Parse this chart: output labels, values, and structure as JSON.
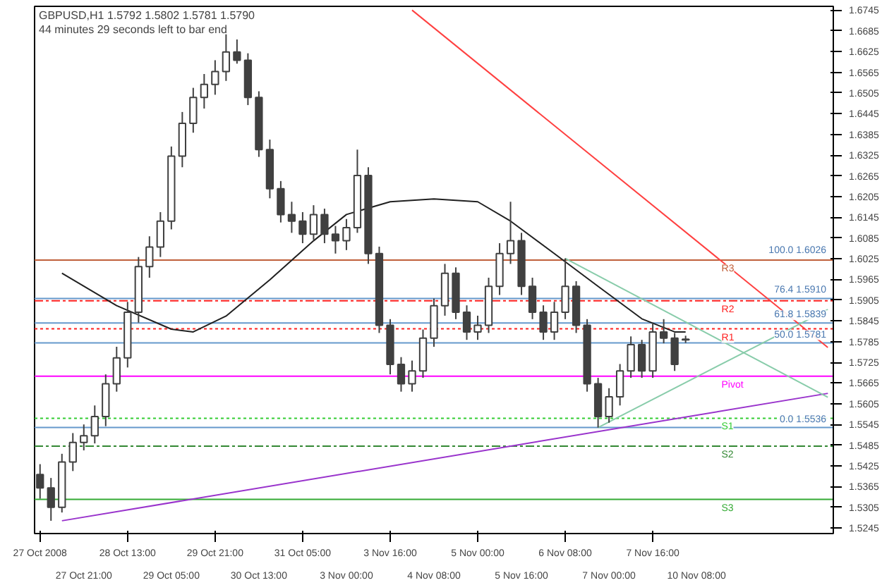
{
  "chart_data": {
    "type": "candlestick",
    "title": "GBPUSD,H1  1.5792 1.5802 1.5781 1.5790",
    "subtitle": "44 minutes 29 seconds left to bar end",
    "color": "#404040",
    "categories": [
      "27 Oct 2008",
      null,
      null,
      null,
      "27 Oct 21:00",
      null,
      null,
      null,
      "28 Oct 13:00",
      null,
      null,
      null,
      "29 Oct 05:00",
      null,
      null,
      null,
      "29 Oct 21:00",
      null,
      null,
      null,
      "30 Oct 13:00",
      null,
      null,
      null,
      "31 Oct 05:00",
      null,
      null,
      null,
      "3 Nov 00:00",
      null,
      null,
      null,
      "3 Nov 16:00",
      null,
      null,
      null,
      "4 Nov 08:00",
      null,
      null,
      null,
      "5 Nov 00:00",
      null,
      null,
      null,
      "5 Nov 16:00",
      null,
      null,
      null,
      "6 Nov 08:00",
      null,
      null,
      null,
      "7 Nov 00:00",
      null,
      null,
      null,
      "7 Nov 16:00",
      null,
      null,
      null,
      "10 Nov 08:00",
      null,
      null,
      null,
      null,
      null,
      null,
      null,
      null,
      null,
      null,
      null,
      null
    ],
    "ohlc": [
      [
        1.54,
        1.543,
        1.533,
        1.5361
      ],
      [
        1.5361,
        1.539,
        1.5266,
        1.5305
      ],
      [
        1.5305,
        1.546,
        1.529,
        1.5436
      ],
      [
        1.5436,
        1.552,
        1.541,
        1.5493
      ],
      [
        1.5493,
        1.5545,
        1.547,
        1.5512
      ],
      [
        1.5512,
        1.56,
        1.549,
        1.5568
      ],
      [
        1.5568,
        1.569,
        1.554,
        1.5663
      ],
      [
        1.5663,
        1.577,
        1.564,
        1.5738
      ],
      [
        1.5738,
        1.59,
        1.571,
        1.587
      ],
      [
        1.587,
        1.603,
        1.584,
        1.6002
      ],
      [
        1.6002,
        1.609,
        1.597,
        1.6059
      ],
      [
        1.6059,
        1.616,
        1.603,
        1.6134
      ],
      [
        1.6134,
        1.635,
        1.611,
        1.6322
      ],
      [
        1.6322,
        1.645,
        1.629,
        1.6417
      ],
      [
        1.6417,
        1.652,
        1.639,
        1.6492
      ],
      [
        1.6492,
        1.656,
        1.646,
        1.653
      ],
      [
        1.653,
        1.66,
        1.65,
        1.6567
      ],
      [
        1.6567,
        1.6675,
        1.654,
        1.6624
      ],
      [
        1.6624,
        1.666,
        1.659,
        1.66
      ],
      [
        1.66,
        1.662,
        1.647,
        1.6492
      ],
      [
        1.6492,
        1.651,
        1.632,
        1.6341
      ],
      [
        1.6341,
        1.637,
        1.62,
        1.6228
      ],
      [
        1.6228,
        1.625,
        1.613,
        1.6153
      ],
      [
        1.6153,
        1.619,
        1.61,
        1.6134
      ],
      [
        1.6134,
        1.616,
        1.607,
        1.6096
      ],
      [
        1.6096,
        1.618,
        1.608,
        1.6153
      ],
      [
        1.6153,
        1.617,
        1.607,
        1.6096
      ],
      [
        1.6096,
        1.612,
        1.604,
        1.6077
      ],
      [
        1.6077,
        1.614,
        1.605,
        1.6115
      ],
      [
        1.6115,
        1.6341,
        1.61,
        1.6266
      ],
      [
        1.6266,
        1.629,
        1.601,
        1.604
      ],
      [
        1.604,
        1.606,
        1.581,
        1.5832
      ],
      [
        1.5832,
        1.585,
        1.569,
        1.5719
      ],
      [
        1.5719,
        1.574,
        1.564,
        1.5663
      ],
      [
        1.5663,
        1.573,
        1.564,
        1.57
      ],
      [
        1.57,
        1.582,
        1.568,
        1.5795
      ],
      [
        1.5795,
        1.591,
        1.577,
        1.5889
      ],
      [
        1.5889,
        1.601,
        1.586,
        1.5983
      ],
      [
        1.5983,
        1.6,
        1.585,
        1.587
      ],
      [
        1.587,
        1.589,
        1.579,
        1.5813
      ],
      [
        1.5813,
        1.586,
        1.579,
        1.5832
      ],
      [
        1.5832,
        1.597,
        1.581,
        1.5945
      ],
      [
        1.5945,
        1.607,
        1.592,
        1.604
      ],
      [
        1.604,
        1.619,
        1.601,
        1.6077
      ],
      [
        1.6077,
        1.61,
        1.592,
        1.5945
      ],
      [
        1.5945,
        1.597,
        1.585,
        1.587
      ],
      [
        1.587,
        1.589,
        1.579,
        1.5813
      ],
      [
        1.5813,
        1.59,
        1.579,
        1.587
      ],
      [
        1.587,
        1.6026,
        1.585,
        1.5945
      ],
      [
        1.5945,
        1.596,
        1.581,
        1.5832
      ],
      [
        1.5832,
        1.585,
        1.564,
        1.5663
      ],
      [
        1.5663,
        1.568,
        1.5536,
        1.5568
      ],
      [
        1.5568,
        1.565,
        1.555,
        1.5625
      ],
      [
        1.5625,
        1.572,
        1.56,
        1.57
      ],
      [
        1.57,
        1.58,
        1.568,
        1.5776
      ],
      [
        1.5776,
        1.579,
        1.568,
        1.57
      ],
      [
        1.57,
        1.584,
        1.568,
        1.5813
      ],
      [
        1.5813,
        1.585,
        1.578,
        1.5795
      ],
      [
        1.5795,
        1.581,
        1.57,
        1.5719
      ],
      [
        1.5792,
        1.5802,
        1.5781,
        1.579
      ],
      null,
      null,
      null,
      null,
      null,
      null,
      null,
      null,
      null,
      null,
      null,
      null,
      null
    ],
    "series": [
      {
        "type": "line",
        "color": "#202020",
        "values": [
          null,
          null,
          1.5983,
          null,
          null,
          null,
          null,
          1.5889,
          null,
          null,
          null,
          null,
          1.5821,
          null,
          1.5813,
          null,
          null,
          1.5859,
          null,
          null,
          null,
          1.5964,
          null,
          null,
          null,
          1.6077,
          null,
          null,
          1.6153,
          null,
          null,
          null,
          1.619,
          null,
          null,
          null,
          1.6198,
          null,
          null,
          null,
          1.619,
          null,
          null,
          1.6134,
          null,
          null,
          null,
          1.604,
          null,
          null,
          null,
          1.5945,
          null,
          null,
          null,
          1.5851,
          null,
          null,
          1.5813,
          1.5813,
          null,
          null,
          null,
          null,
          null,
          null,
          null,
          null,
          null,
          null,
          null,
          null,
          null
        ]
      },
      {
        "type": "line",
        "color": "#ff4040",
        "values": [
          null,
          null,
          null,
          null,
          null,
          null,
          null,
          null,
          null,
          null,
          null,
          null,
          null,
          null,
          null,
          null,
          null,
          null,
          null,
          null,
          null,
          null,
          null,
          null,
          null,
          null,
          null,
          null,
          null,
          null,
          null,
          null,
          null,
          null,
          1.6745,
          null,
          null,
          null,
          null,
          null,
          null,
          null,
          null,
          null,
          null,
          null,
          null,
          null,
          null,
          null,
          null,
          null,
          null,
          null,
          null,
          null,
          null,
          null,
          null,
          null,
          null,
          null,
          null,
          null,
          null,
          null,
          null,
          null,
          null,
          null,
          null,
          null,
          1.5768
        ]
      },
      {
        "type": "line",
        "color": "#9933cc",
        "values": [
          null,
          null,
          1.5266,
          null,
          null,
          null,
          null,
          null,
          null,
          null,
          null,
          null,
          null,
          null,
          null,
          null,
          null,
          null,
          null,
          null,
          null,
          null,
          null,
          null,
          null,
          null,
          null,
          null,
          null,
          null,
          null,
          null,
          null,
          null,
          null,
          null,
          null,
          null,
          null,
          null,
          null,
          null,
          null,
          null,
          null,
          null,
          null,
          null,
          null,
          null,
          null,
          null,
          null,
          null,
          null,
          null,
          null,
          null,
          null,
          null,
          null,
          null,
          null,
          null,
          null,
          null,
          null,
          null,
          null,
          null,
          null,
          null,
          1.5635
        ]
      },
      {
        "type": "line",
        "color": "#88ccaa",
        "values": [
          null,
          null,
          null,
          null,
          null,
          null,
          null,
          null,
          null,
          null,
          null,
          null,
          null,
          null,
          null,
          null,
          null,
          null,
          null,
          null,
          null,
          null,
          null,
          null,
          null,
          null,
          null,
          null,
          null,
          null,
          null,
          null,
          null,
          null,
          null,
          null,
          null,
          null,
          null,
          null,
          null,
          null,
          null,
          null,
          null,
          null,
          null,
          null,
          1.6026,
          null,
          null,
          null,
          null,
          null,
          null,
          null,
          null,
          null,
          null,
          null,
          null,
          null,
          null,
          null,
          null,
          null,
          null,
          null,
          null,
          null,
          null,
          null,
          1.5624
        ]
      },
      {
        "type": "line",
        "color": "#88ccaa",
        "values": [
          null,
          null,
          null,
          null,
          null,
          null,
          null,
          null,
          null,
          null,
          null,
          null,
          null,
          null,
          null,
          null,
          null,
          null,
          null,
          null,
          null,
          null,
          null,
          null,
          null,
          null,
          null,
          null,
          null,
          null,
          null,
          null,
          null,
          null,
          null,
          null,
          null,
          null,
          null,
          null,
          null,
          null,
          null,
          null,
          null,
          null,
          null,
          null,
          null,
          null,
          null,
          1.5536,
          null,
          null,
          null,
          null,
          null,
          null,
          null,
          null,
          null,
          null,
          null,
          null,
          null,
          null,
          null,
          null,
          null,
          null,
          null,
          null,
          1.5878
        ]
      }
    ],
    "ylim": [
      1.5229,
      1.6756
    ],
    "yticks": [
      1.6745,
      1.6685,
      1.6625,
      1.6565,
      1.6505,
      1.6445,
      1.6385,
      1.6325,
      1.6265,
      1.6205,
      1.6145,
      1.6085,
      1.6025,
      1.5965,
      1.5905,
      1.5845,
      1.5785,
      1.5725,
      1.5665,
      1.5605,
      1.5545,
      1.5485,
      1.5425,
      1.5365,
      1.5305,
      1.5245
    ],
    "ref_lines": [
      {
        "axis": "y",
        "value": 1.6021,
        "label": "R3",
        "color": "#c0603a",
        "line_style": "solid"
      },
      {
        "axis": "y",
        "value": 1.5903,
        "label": "R2",
        "color": "#ff2020",
        "line_style": "dashed"
      },
      {
        "axis": "y",
        "value": 1.5822,
        "label": "R1",
        "color": "#ff2020",
        "line_style": "dotted"
      },
      {
        "axis": "y",
        "value": 1.5685,
        "label": "Pivot",
        "color": "#ff00ff",
        "line_style": "solid"
      },
      {
        "axis": "y",
        "value": 1.5563,
        "label": "S1",
        "color": "#33cc33",
        "line_style": "dotted"
      },
      {
        "axis": "y",
        "value": 1.5482,
        "label": "S2",
        "color": "#338833",
        "line_style": "dashed"
      },
      {
        "axis": "y",
        "value": 1.5328,
        "label": "S3",
        "color": "#33aa33",
        "line_style": "solid"
      },
      {
        "axis": "y",
        "value": 1.591,
        "color": "#6699cc",
        "line_style": "solid"
      },
      {
        "axis": "y",
        "value": 1.5839,
        "color": "#6699cc",
        "line_style": "solid"
      },
      {
        "axis": "y",
        "value": 1.5781,
        "color": "#6699cc",
        "line_style": "solid"
      },
      {
        "axis": "y",
        "value": 1.5536,
        "color": "#6699cc",
        "line_style": "solid"
      }
    ],
    "annotations": [
      {
        "text": "100.0  1.6026",
        "y": 1.6026
      },
      {
        "text": "76.4  1.5910",
        "y": 1.591
      },
      {
        "text": "61.8  1.5839",
        "y": 1.5839
      },
      {
        "text": "50.0  1.5781",
        "y": 1.5781
      },
      {
        "text": "0.0  1.5536",
        "y": 1.5536
      }
    ]
  }
}
